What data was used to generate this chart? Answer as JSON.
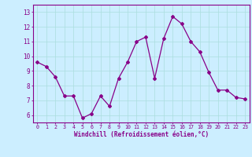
{
  "x": [
    0,
    1,
    2,
    3,
    4,
    5,
    6,
    7,
    8,
    9,
    10,
    11,
    12,
    13,
    14,
    15,
    16,
    17,
    18,
    19,
    20,
    21,
    22,
    23
  ],
  "y": [
    9.6,
    9.3,
    8.6,
    7.3,
    7.3,
    5.8,
    6.1,
    7.3,
    6.6,
    8.5,
    9.6,
    11.0,
    11.3,
    8.5,
    11.2,
    12.7,
    12.2,
    11.0,
    10.3,
    8.9,
    7.7,
    7.7,
    7.2,
    7.1
  ],
  "line_color": "#880088",
  "marker": "D",
  "markersize": 2.0,
  "linewidth": 0.9,
  "bg_color": "#cceeff",
  "grid_color": "#aadddd",
  "xlabel": "Windchill (Refroidissement éolien,°C)",
  "xlim": [
    -0.5,
    23.5
  ],
  "ylim": [
    5.5,
    13.5
  ],
  "yticks": [
    6,
    7,
    8,
    9,
    10,
    11,
    12,
    13
  ],
  "xticks": [
    0,
    1,
    2,
    3,
    4,
    5,
    6,
    7,
    8,
    9,
    10,
    11,
    12,
    13,
    14,
    15,
    16,
    17,
    18,
    19,
    20,
    21,
    22,
    23
  ],
  "tick_color": "#880088",
  "axis_color": "#880088",
  "xlabel_fontsize": 5.5,
  "ytick_fontsize": 5.5,
  "xtick_fontsize": 4.8
}
